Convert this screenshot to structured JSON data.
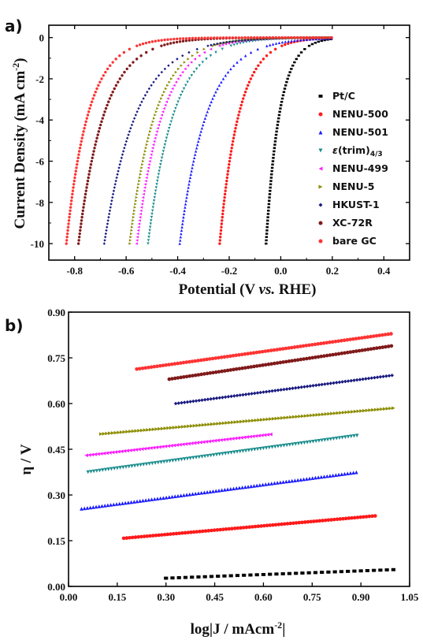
{
  "panels": [
    {
      "letter": "a)",
      "xlabel_pre": "Potential (V ",
      "xlabel_ital": "vs.",
      "xlabel_post": " RHE)",
      "ylabel": "Current Density (mA cm",
      "ylabel_sup": "-2",
      "ylabel_close": ")"
    },
    {
      "letter": "b)",
      "xlabel": "log|J / mAcm",
      "xlabel_sup": "-2",
      "xlabel_close": "|",
      "ylabel": "η / V"
    }
  ],
  "chart_data": [
    {
      "type": "line",
      "title": "",
      "xlabel": "Potential (V vs. RHE)",
      "ylabel": "Current Density (mA cm-2)",
      "xlim": [
        -0.9,
        0.5
      ],
      "ylim": [
        -10.8,
        0.6
      ],
      "xticks": [
        -0.8,
        -0.6,
        -0.4,
        -0.2,
        0.0,
        0.2,
        0.4
      ],
      "xticklabels": [
        "-0.8",
        "-0.6",
        "-0.4",
        "-0.2",
        "0.0",
        "0.2",
        "0.4"
      ],
      "yticks": [
        0,
        -2,
        -4,
        -6,
        -8,
        -10
      ],
      "yticklabels": [
        "0",
        "-2",
        "-4",
        "-6",
        "-8",
        "-10"
      ],
      "legend_position": "right",
      "series": [
        {
          "name": "Pt/C",
          "color": "#000000",
          "marker": "square",
          "onset": -0.057,
          "scale": 0.052,
          "x_end": 0.2
        },
        {
          "name": "NENU-500",
          "color": "#ff1a1a",
          "marker": "circle",
          "onset": -0.237,
          "scale": 0.075,
          "x_end": 0.2
        },
        {
          "name": "NENU-501",
          "color": "#1a1aff",
          "marker": "triangle-up",
          "onset": -0.392,
          "scale": 0.105,
          "x_end": 0.2
        },
        {
          "name": "ε(trim)4/3",
          "color": "#1a8c8c",
          "marker": "triangle-down",
          "onset": -0.515,
          "scale": 0.1,
          "x_end": 0.2
        },
        {
          "name": "NENU-499",
          "color": "#ff1aff",
          "marker": "triangle-left",
          "onset": -0.56,
          "scale": 0.1,
          "x_end": 0.2
        },
        {
          "name": "NENU-5",
          "color": "#8c8c00",
          "marker": "triangle-right",
          "onset": -0.585,
          "scale": 0.1,
          "x_end": 0.2
        },
        {
          "name": "HKUST-1",
          "color": "#1a1a80",
          "marker": "diamond",
          "onset": -0.685,
          "scale": 0.125,
          "x_end": 0.2
        },
        {
          "name": "XC-72R",
          "color": "#801a1a",
          "marker": "circle",
          "onset": -0.785,
          "scale": 0.1,
          "x_end": 0.2
        },
        {
          "name": "bare GC",
          "color": "#ff3333",
          "marker": "circle",
          "onset": -0.832,
          "scale": 0.085,
          "x_end": 0.2
        }
      ]
    },
    {
      "type": "line",
      "title": "",
      "xlabel": "log|J / mAcm-2|",
      "ylabel": "η / V",
      "xlim": [
        0.0,
        1.05
      ],
      "ylim": [
        0.0,
        0.9
      ],
      "xticks": [
        0.0,
        0.15,
        0.3,
        0.45,
        0.6,
        0.75,
        0.9,
        1.05
      ],
      "xticklabels": [
        "0.00",
        "0.15",
        "0.30",
        "0.45",
        "0.60",
        "0.75",
        "0.90",
        "1.05"
      ],
      "yticks": [
        0.0,
        0.15,
        0.3,
        0.45,
        0.6,
        0.75,
        0.9
      ],
      "yticklabels": [
        "0.00",
        "0.15",
        "0.30",
        "0.45",
        "0.60",
        "0.75",
        "0.90"
      ],
      "series": [
        {
          "name": "Pt/C",
          "color": "#000000",
          "marker": "square",
          "x": [
            0.3,
            1.0
          ],
          "y": [
            0.027,
            0.055
          ]
        },
        {
          "name": "NENU-500",
          "color": "#ff1a1a",
          "marker": "circle",
          "x": [
            0.17,
            0.95
          ],
          "y": [
            0.158,
            0.232
          ]
        },
        {
          "name": "NENU-501",
          "color": "#1a1aff",
          "marker": "triangle-up",
          "x": [
            0.04,
            0.89
          ],
          "y": [
            0.255,
            0.375
          ]
        },
        {
          "name": "ε(trim)4/3",
          "color": "#1a8c8c",
          "marker": "triangle-down",
          "x": [
            0.06,
            0.89
          ],
          "y": [
            0.375,
            0.495
          ]
        },
        {
          "name": "NENU-499",
          "color": "#ff1aff",
          "marker": "triangle-left",
          "x": [
            0.055,
            0.63
          ],
          "y": [
            0.43,
            0.5
          ]
        },
        {
          "name": "NENU-5",
          "color": "#8c8c00",
          "marker": "triangle-right",
          "x": [
            0.1,
            1.0
          ],
          "y": [
            0.5,
            0.585
          ]
        },
        {
          "name": "HKUST-1",
          "color": "#1a1a80",
          "marker": "diamond",
          "x": [
            0.33,
            1.0
          ],
          "y": [
            0.6,
            0.693
          ]
        },
        {
          "name": "XC-72R",
          "color": "#801a1a",
          "marker": "circle",
          "x": [
            0.31,
            1.0
          ],
          "y": [
            0.68,
            0.79
          ]
        },
        {
          "name": "bare GC",
          "color": "#ff3333",
          "marker": "circle",
          "x": [
            0.21,
            1.0
          ],
          "y": [
            0.713,
            0.83
          ]
        }
      ]
    }
  ]
}
